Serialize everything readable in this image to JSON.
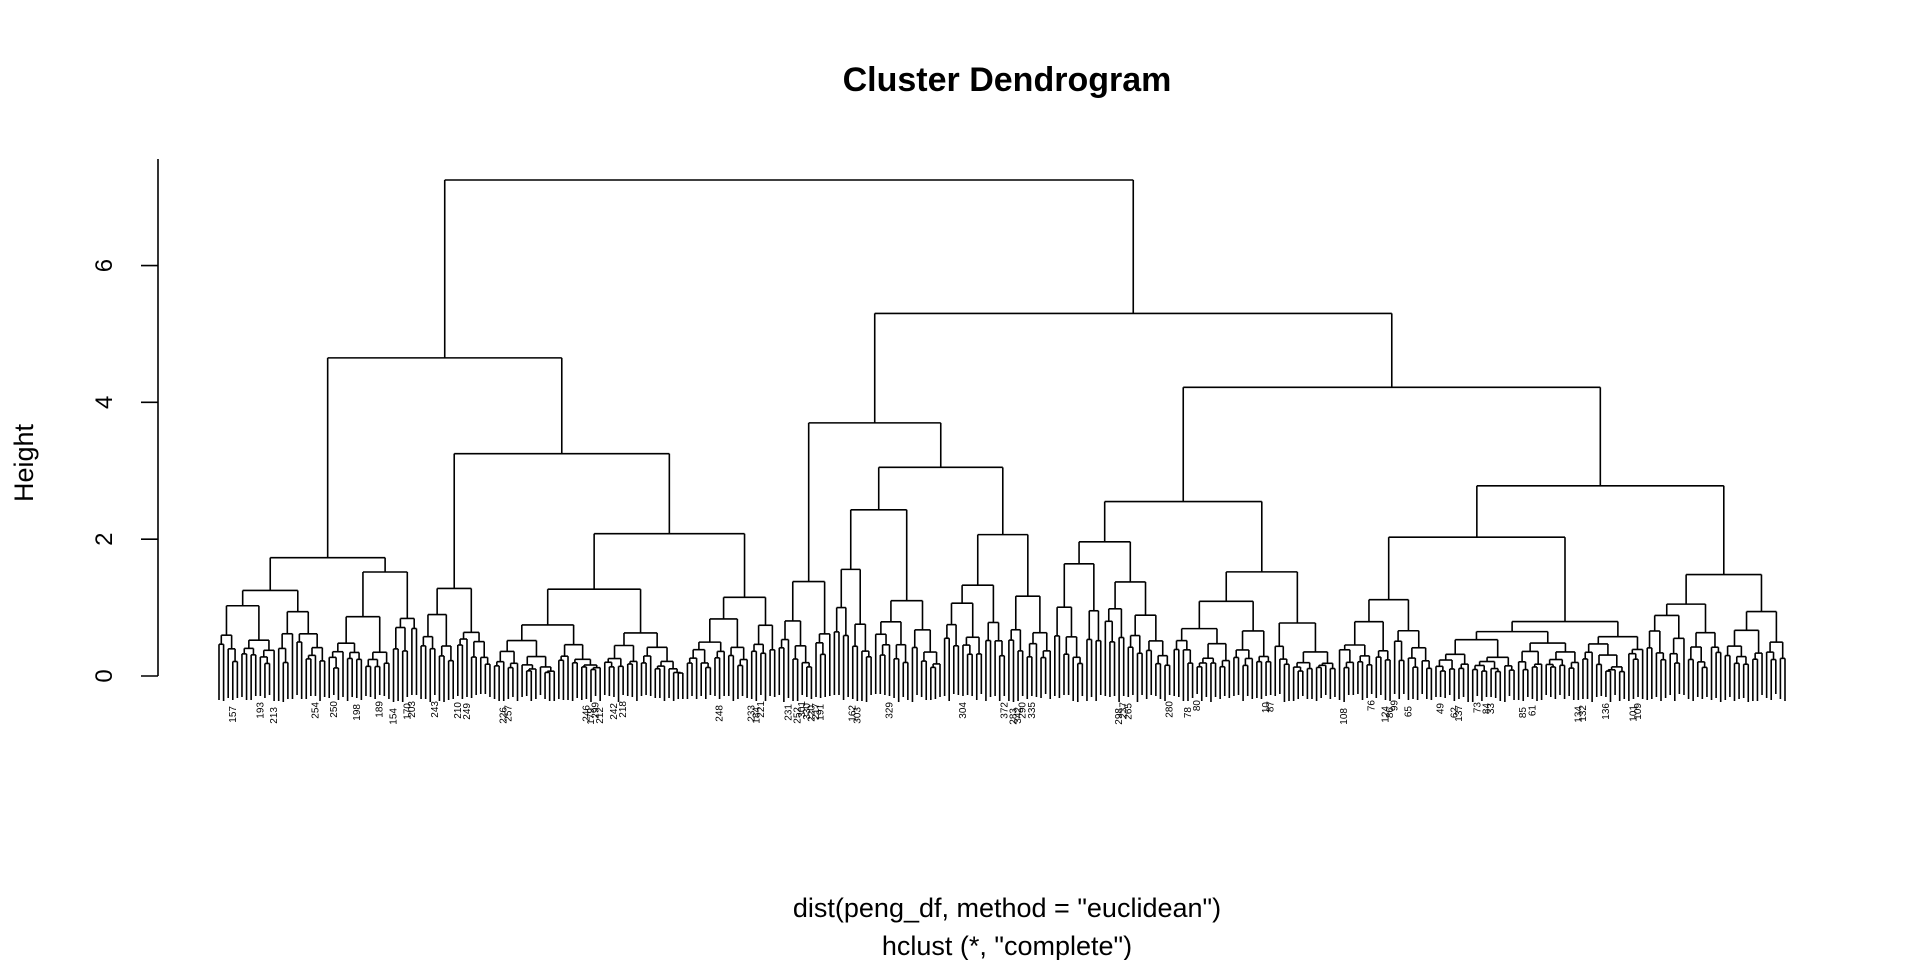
{
  "chart_data": {
    "type": "dendrogram",
    "title": "Cluster Dendrogram",
    "ylabel": "Height",
    "xlabel": "dist(peng_df, method = \"euclidean\")",
    "sub": "hclust (*, \"complete\")",
    "ylim": [
      0,
      7.25
    ],
    "yticks": [
      0,
      2,
      4,
      6
    ],
    "ytick_labels": [
      "0",
      "2",
      "4",
      "6"
    ],
    "grid": false,
    "n_leaves": 342,
    "merges": [
      {
        "id": "root",
        "height": 7.25,
        "children": [
          "A",
          "B"
        ]
      },
      {
        "id": "A",
        "height": 4.65,
        "children": [
          "A1",
          "A2"
        ]
      },
      {
        "id": "A1",
        "height": 1.73,
        "children": [
          "A1a",
          "A1b"
        ]
      },
      {
        "id": "A1a",
        "height": 1.25,
        "children": [],
        "leaves": 24
      },
      {
        "id": "A1b",
        "height": 1.52,
        "children": [],
        "leaves": 20
      },
      {
        "id": "A2",
        "height": 3.25,
        "children": [
          "A2a",
          "A2b"
        ]
      },
      {
        "id": "A2a",
        "height": 1.28,
        "children": [],
        "leaves": 16
      },
      {
        "id": "A2b",
        "height": 2.08,
        "children": [],
        "leaves": 62
      },
      {
        "id": "B",
        "height": 5.3,
        "children": [
          "B1",
          "B2"
        ]
      },
      {
        "id": "B1",
        "height": 3.7,
        "children": [
          "B1a",
          "B1b"
        ]
      },
      {
        "id": "B1a",
        "height": 1.38,
        "children": [],
        "leaves": 12
      },
      {
        "id": "B1b",
        "height": 3.05,
        "children": [],
        "leaves": 48
      },
      {
        "id": "B2",
        "height": 4.22,
        "children": [
          "B2a",
          "B2b"
        ]
      },
      {
        "id": "B2a",
        "height": 2.55,
        "children": [],
        "leaves": 62
      },
      {
        "id": "B2b",
        "height": 2.78,
        "children": [],
        "leaves": 98
      }
    ],
    "leaf_labels_visible": [
      "157",
      "193",
      "213",
      "254",
      "250",
      "198",
      "189",
      "154",
      "170",
      "203",
      "243",
      "210",
      "249",
      "226",
      "257",
      "246",
      "179",
      "299",
      "212",
      "242",
      "218",
      "248",
      "233",
      "184",
      "221",
      "231",
      "252",
      "301",
      "330",
      "220",
      "217",
      "191",
      "162",
      "303",
      "329",
      "304",
      "372",
      "283",
      "342",
      "290",
      "335",
      "298",
      "237",
      "265",
      "280",
      "78",
      "80",
      "10",
      "87",
      "108",
      "76",
      "124",
      "86",
      "99",
      "65",
      "49",
      "62",
      "137",
      "73",
      "84",
      "33",
      "85",
      "61",
      "134",
      "132",
      "136",
      "101",
      "109"
    ]
  }
}
